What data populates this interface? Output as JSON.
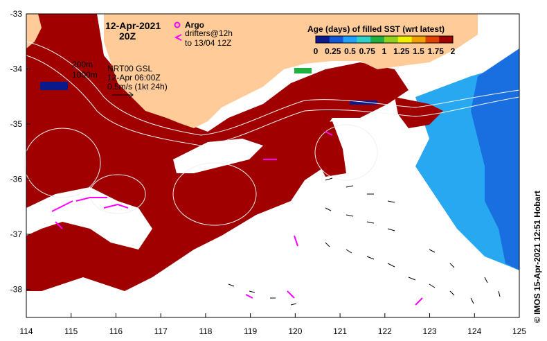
{
  "title": {
    "date": "12-Apr-2021",
    "time": "20Z"
  },
  "legend": {
    "argo_label": "Argo",
    "argo_color": "#ff00ff",
    "drifters_label": "drifters@12h",
    "drifters_to": "to 13/04 12Z"
  },
  "info": {
    "contour_200": "200m",
    "contour_1000": "1000m",
    "product": "NRT00 GSL",
    "product_time": "12-Apr 06:00Z",
    "vector_scale": "0.5m/s (1kt 24h)"
  },
  "colorbar": {
    "title": "Age (days) of filled SST (wrt latest)",
    "ticks": [
      "0",
      "0.25",
      "0.5",
      "0.75",
      "1",
      "1.25",
      "1.5",
      "1.75",
      "2"
    ],
    "colors": [
      "#0a1a8c",
      "#1456d8",
      "#20a0ff",
      "#30d0c8",
      "#20b040",
      "#90d020",
      "#f0f000",
      "#f0a000",
      "#e04000",
      "#a00000"
    ]
  },
  "axes": {
    "lon_ticks": [
      "114",
      "115",
      "116",
      "117",
      "118",
      "119",
      "120",
      "121",
      "122",
      "123",
      "124",
      "125"
    ],
    "lat_ticks": [
      "-33",
      "-34",
      "-35",
      "-36",
      "-37",
      "-38"
    ]
  },
  "colors": {
    "land": "#ffcc99",
    "sst_aged": "#a00000",
    "fresh_ocean": "#ffffff",
    "recent_blue": "#1a6fe0",
    "light_blue": "#28a8f0",
    "navy": "#0a1a8c"
  },
  "credit": "© IMOS 15-Apr-2021 12:51 Hobart"
}
